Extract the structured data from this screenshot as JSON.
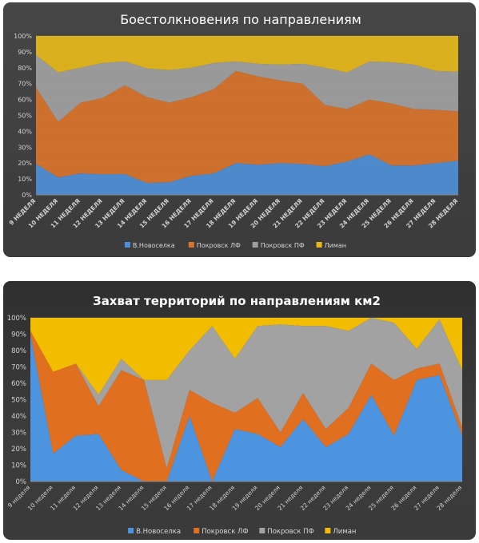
{
  "charts": [
    {
      "type": "area",
      "stacked_percent": true,
      "title": "Боестолкновения по направлениям",
      "y_ticks": [
        "0%",
        "10%",
        "20%",
        "30%",
        "40%",
        "50%",
        "60%",
        "70%",
        "80%",
        "90%",
        "100%"
      ],
      "categories": [
        "9 НЕДЕЛЯ",
        "10 НЕДЕЛЯ",
        "11 НЕДЕЛЯ",
        "12 НЕДЕЛЯ",
        "13 НЕДЕЛЯ",
        "14 НЕДЕЛЯ",
        "15 НЕДЕЛЯ",
        "16 НЕДЕЛЯ",
        "17 НЕДЕЛЯ",
        "18 НЕДЕЛЯ",
        "19 НЕДЕЛЯ",
        "20 НЕДЕЛЯ",
        "21 НЕДЕЛЯ",
        "22 НЕДЕЛЯ",
        "23 НЕДЕЛЯ",
        "24 НЕДЕЛЯ",
        "25 НЕДЕЛЯ",
        "26 НЕДЕЛЯ",
        "27 НЕДЕЛЯ",
        "28 НЕДЕЛЯ"
      ],
      "ylim": [
        0,
        100
      ],
      "legend_position": "bottom",
      "series": [
        {
          "name": "В.Новоселка",
          "color": "#4f8fd6",
          "values": [
            19.5,
            11,
            13.5,
            13,
            13,
            7.5,
            8,
            12,
            13.5,
            20,
            19,
            20,
            19.5,
            18,
            21,
            25.5,
            18.5,
            18.5,
            20,
            21.5
          ]
        },
        {
          "name": "Покровск ЛФ",
          "color": "#d9742c",
          "values": [
            48,
            35,
            44.5,
            48,
            56,
            54,
            50,
            49.5,
            53,
            58,
            55.5,
            52,
            50.5,
            38.5,
            33,
            34.5,
            39,
            35.5,
            33.5,
            31
          ]
        },
        {
          "name": "Покровск ПФ",
          "color": "#a0a0a0",
          "values": [
            20.5,
            31,
            22,
            22,
            15,
            18,
            20.5,
            18.5,
            16.5,
            6,
            8,
            10,
            12.5,
            23.5,
            23,
            24,
            26,
            28,
            24.5,
            25
          ]
        },
        {
          "name": "Лиман",
          "color": "#e6b81c",
          "values": [
            12,
            23,
            20,
            17,
            16,
            20.5,
            21.5,
            20,
            17,
            16,
            17.5,
            18,
            17.5,
            20,
            23,
            16,
            16.5,
            18,
            22,
            22.5
          ]
        }
      ]
    },
    {
      "type": "area",
      "stacked_percent": true,
      "title": "Захват территорий по направлениям км2",
      "y_ticks": [
        "0%",
        "10%",
        "20%",
        "30%",
        "40%",
        "50%",
        "60%",
        "70%",
        "80%",
        "90%",
        "100%"
      ],
      "categories": [
        "9 неделя",
        "10 неделя",
        "11 неделя",
        "12 неделя",
        "13 неделя",
        "14 неделя",
        "15 неделя",
        "16 неделя",
        "17 неделя",
        "18 неделя",
        "19 неделя",
        "20 неделя",
        "21 неделя",
        "22 неделя",
        "23 неделя",
        "24 неделя",
        "25 неделя",
        "26 неделя",
        "27 неделя",
        "28 неделя"
      ],
      "ylim": [
        0,
        100
      ],
      "legend_position": "bottom",
      "series": [
        {
          "name": "В.Новоселка",
          "color": "#4d94e0",
          "values": [
            90,
            17,
            28,
            29,
            7,
            0,
            0,
            40,
            0,
            32,
            29,
            21,
            38,
            21,
            29,
            53,
            28,
            62,
            65,
            28
          ]
        },
        {
          "name": "Покровск ЛФ",
          "color": "#e06f1f",
          "values": [
            2,
            50,
            44,
            17,
            61,
            62,
            8,
            16,
            48,
            10,
            22,
            9,
            16,
            11,
            16,
            19,
            34,
            7,
            7,
            5
          ]
        },
        {
          "name": "Покровск ПФ",
          "color": "#a2a2a2",
          "values": [
            0,
            0,
            0,
            7,
            7,
            0,
            54,
            24,
            47,
            33,
            44,
            66,
            41,
            63,
            47,
            28,
            35,
            12,
            27,
            35
          ]
        },
        {
          "name": "Лиман",
          "color": "#f2bd00",
          "values": [
            8,
            33,
            28,
            47,
            25,
            38,
            38,
            20,
            5,
            25,
            5,
            4,
            5,
            5,
            8,
            0,
            3,
            19,
            1,
            32
          ]
        }
      ]
    }
  ]
}
